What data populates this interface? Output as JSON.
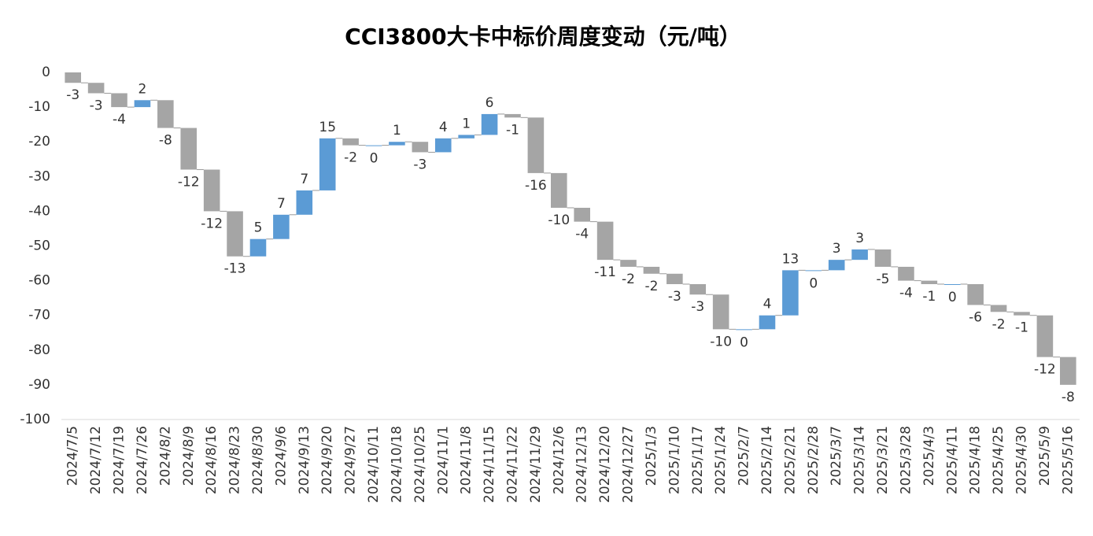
{
  "chart_data": {
    "type": "waterfall",
    "title": "CCI3800大卡中标价周度变动（元/吨）",
    "categories": [
      "2024/7/5",
      "2024/7/12",
      "2024/7/19",
      "2024/7/26",
      "2024/8/2",
      "2024/8/9",
      "2024/8/16",
      "2024/8/23",
      "2024/8/30",
      "2024/9/6",
      "2024/9/13",
      "2024/9/20",
      "2024/9/27",
      "2024/10/11",
      "2024/10/18",
      "2024/10/25",
      "2024/11/1",
      "2024/11/8",
      "2024/11/15",
      "2024/11/22",
      "2024/11/29",
      "2024/12/6",
      "2024/12/13",
      "2024/12/20",
      "2024/12/27",
      "2025/1/3",
      "2025/1/10",
      "2025/1/17",
      "2025/1/24",
      "2025/2/7",
      "2025/2/14",
      "2025/2/21",
      "2025/2/28",
      "2025/3/7",
      "2025/3/14",
      "2025/3/21",
      "2025/3/28",
      "2025/4/3",
      "2025/4/11",
      "2025/4/18",
      "2025/4/25",
      "2025/4/30",
      "2025/5/9",
      "2025/5/16"
    ],
    "values": [
      -3,
      -3,
      -4,
      2,
      -8,
      -12,
      -12,
      -13,
      5,
      7,
      7,
      15,
      -2,
      0,
      1,
      -3,
      4,
      1,
      6,
      -1,
      -16,
      -10,
      -4,
      -11,
      -2,
      -2,
      -3,
      -3,
      -10,
      0,
      4,
      13,
      0,
      3,
      3,
      -5,
      -4,
      -1,
      0,
      -6,
      -2,
      -1,
      -12,
      -8
    ],
    "increase_color": "#5b9bd5",
    "decrease_color": "#a5a5a5",
    "ylim": [
      -100,
      0
    ],
    "yticks": [
      0,
      -10,
      -20,
      -30,
      -40,
      -50,
      -60,
      -70,
      -80,
      -90,
      -100
    ],
    "grid": false
  }
}
